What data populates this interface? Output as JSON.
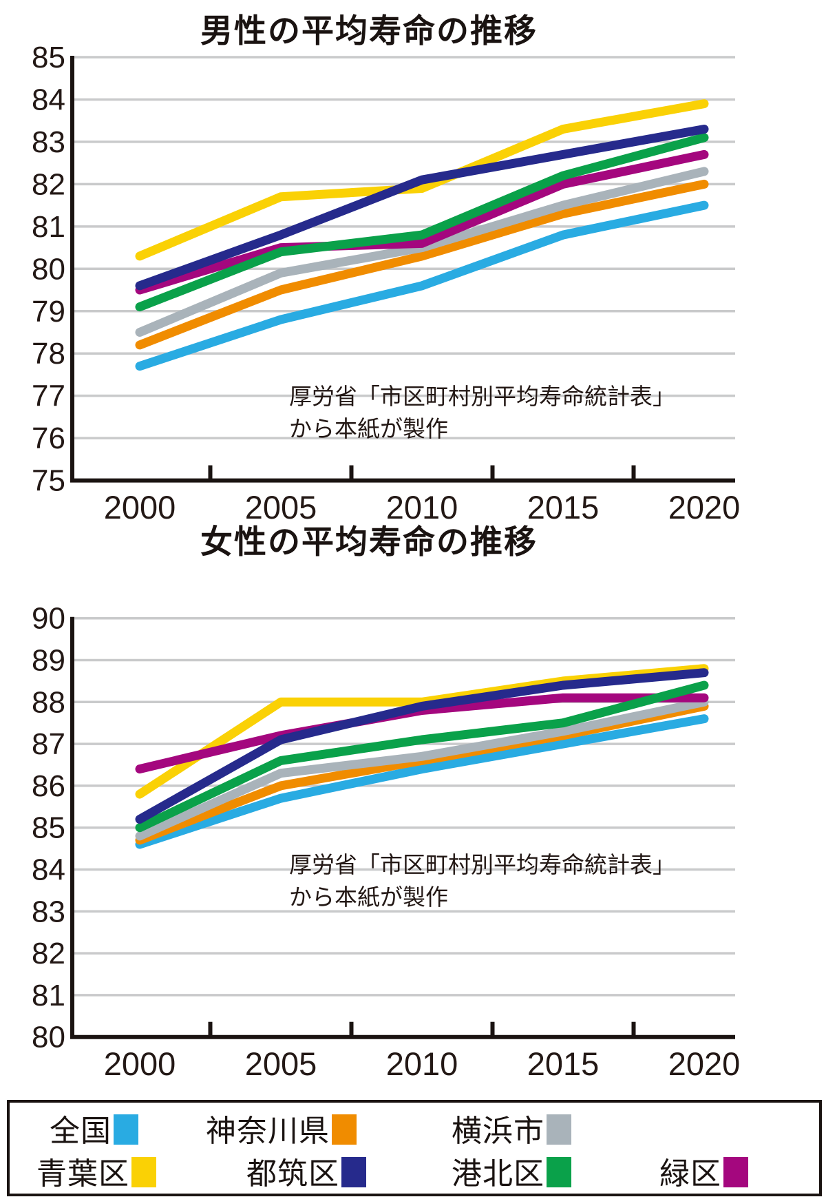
{
  "chart_data": [
    {
      "type": "line",
      "title": "男性の平均寿命の推移",
      "x": [
        2000,
        2005,
        2010,
        2015,
        2020
      ],
      "x_tick_labels": [
        "2000",
        "2005",
        "2010",
        "2015",
        "2020"
      ],
      "ylim": [
        75,
        85
      ],
      "y_tick_step": 1,
      "grid": true,
      "legend_position": "bottom-shared",
      "series": [
        {
          "name": "全国",
          "color": "#29abe2",
          "values": [
            77.7,
            78.8,
            79.6,
            80.8,
            81.5
          ]
        },
        {
          "name": "神奈川県",
          "color": "#f08c00",
          "values": [
            78.2,
            79.5,
            80.3,
            81.3,
            82.0
          ]
        },
        {
          "name": "横浜市",
          "color": "#a9b3ba",
          "values": [
            78.5,
            79.9,
            80.5,
            81.5,
            82.3
          ]
        },
        {
          "name": "青葉区",
          "color": "#fad105",
          "values": [
            80.3,
            81.7,
            81.9,
            83.3,
            83.9
          ]
        },
        {
          "name": "緑区",
          "color": "#a4077e",
          "values": [
            79.5,
            80.5,
            80.6,
            82.0,
            82.7
          ]
        },
        {
          "name": "港北区",
          "color": "#0aa14a",
          "values": [
            79.1,
            80.4,
            80.8,
            82.2,
            83.1
          ]
        },
        {
          "name": "都筑区",
          "color": "#262a8c",
          "values": [
            79.6,
            80.8,
            82.1,
            82.7,
            83.3
          ]
        }
      ],
      "source_note": [
        "厚労省「市区町村別平均寿命統計表」",
        "から本紙が製作"
      ]
    },
    {
      "type": "line",
      "title": "女性の平均寿命の推移",
      "x": [
        2000,
        2005,
        2010,
        2015,
        2020
      ],
      "x_tick_labels": [
        "2000",
        "2005",
        "2010",
        "2015",
        "2020"
      ],
      "ylim": [
        80,
        90
      ],
      "y_tick_step": 1,
      "grid": true,
      "legend_position": "bottom-shared",
      "series": [
        {
          "name": "全国",
          "color": "#29abe2",
          "values": [
            84.6,
            85.7,
            86.4,
            87.0,
            87.6
          ]
        },
        {
          "name": "神奈川県",
          "color": "#f08c00",
          "values": [
            84.7,
            86.0,
            86.6,
            87.2,
            87.9
          ]
        },
        {
          "name": "横浜市",
          "color": "#a9b3ba",
          "values": [
            84.8,
            86.3,
            86.7,
            87.3,
            88.0
          ]
        },
        {
          "name": "青葉区",
          "color": "#fad105",
          "values": [
            85.8,
            88.0,
            88.0,
            88.5,
            88.8
          ]
        },
        {
          "name": "緑区",
          "color": "#a4077e",
          "values": [
            86.4,
            87.2,
            87.8,
            88.1,
            88.1
          ]
        },
        {
          "name": "港北区",
          "color": "#0aa14a",
          "values": [
            85.0,
            86.6,
            87.1,
            87.5,
            88.4
          ]
        },
        {
          "name": "都筑区",
          "color": "#262a8c",
          "values": [
            85.2,
            87.1,
            87.9,
            88.4,
            88.7
          ]
        }
      ],
      "source_note": [
        "厚労省「市区町村別平均寿命統計表」",
        "から本紙が製作"
      ]
    }
  ],
  "legend": {
    "rows": [
      [
        {
          "label": "全国",
          "color": "#29abe2"
        },
        {
          "label": "神奈川県",
          "color": "#f08c00"
        },
        {
          "label": "横浜市",
          "color": "#a9b3ba"
        }
      ],
      [
        {
          "label": "青葉区",
          "color": "#fad105"
        },
        {
          "label": "都筑区",
          "color": "#262a8c"
        },
        {
          "label": "港北区",
          "color": "#0aa14a"
        },
        {
          "label": "緑区",
          "color": "#a4077e"
        }
      ]
    ]
  }
}
